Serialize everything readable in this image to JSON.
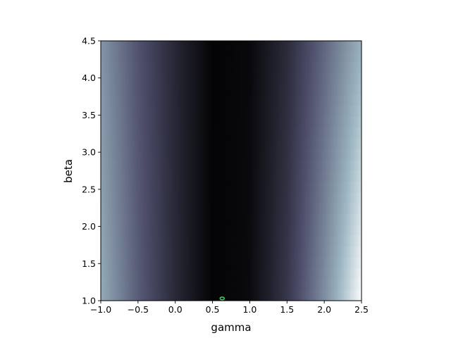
{
  "chart_data": {
    "type": "heatmap",
    "title": "",
    "xlabel": "gamma",
    "ylabel": "beta",
    "xlim": [
      -1.0,
      2.5
    ],
    "ylim": [
      1.0,
      4.5
    ],
    "x_ticks": [
      "−1.0",
      "−0.5",
      "0.0",
      "0.5",
      "1.0",
      "1.5",
      "2.0",
      "2.5"
    ],
    "x_tick_values": [
      -1.0,
      -0.5,
      0.0,
      0.5,
      1.0,
      1.5,
      2.0,
      2.5
    ],
    "y_ticks": [
      "1.0",
      "1.5",
      "2.0",
      "2.5",
      "3.0",
      "3.5",
      "4.0",
      "4.5"
    ],
    "y_tick_values": [
      1.0,
      1.5,
      2.0,
      2.5,
      3.0,
      3.5,
      4.0,
      4.5
    ],
    "colormap": "bone",
    "grid": false,
    "minimum_marker": {
      "x": 0.63,
      "y": 1.03,
      "color": "#3fd06a"
    },
    "heatmap_profile": {
      "description_axis": "gamma",
      "dark_center_gamma": 0.65,
      "samples": [
        {
          "gamma": -1.0,
          "level": 0.62
        },
        {
          "gamma": -0.5,
          "level": 0.38
        },
        {
          "gamma": 0.0,
          "level": 0.18
        },
        {
          "gamma": 0.5,
          "level": 0.02
        },
        {
          "gamma": 1.0,
          "level": 0.04
        },
        {
          "gamma": 1.5,
          "level": 0.2
        },
        {
          "gamma": 2.0,
          "level": 0.45
        },
        {
          "gamma": 2.5,
          "level": 0.72
        }
      ]
    }
  }
}
